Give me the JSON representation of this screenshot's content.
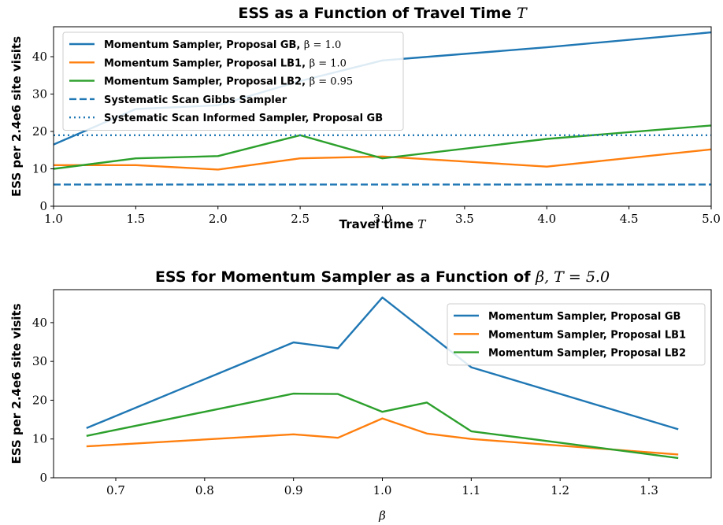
{
  "chart_data": [
    {
      "type": "line",
      "title": "ESS as a Function of Travel Time",
      "title_math": "T",
      "xlabel": "Travel time",
      "xlabel_math": "T",
      "ylabel": "ESS per 2.4e6 site visits",
      "xlim": [
        1.0,
        5.0
      ],
      "ylim": [
        0,
        48
      ],
      "xticks": [
        "1.0",
        "1.5",
        "2.0",
        "2.5",
        "3.0",
        "3.5",
        "4.0",
        "4.5",
        "5.0"
      ],
      "xtick_values": [
        1.0,
        1.5,
        2.0,
        2.5,
        3.0,
        3.5,
        4.0,
        4.5,
        5.0
      ],
      "yticks": [
        "0",
        "10",
        "20",
        "30",
        "40"
      ],
      "ytick_values": [
        0,
        10,
        20,
        30,
        40
      ],
      "legend_position": "upper-left",
      "series": [
        {
          "name": "Momentum Sampler, Proposal GB,",
          "name_math": "β = 1.0",
          "color": "#1f77b4",
          "style": "solid",
          "x": [
            1.0,
            1.5,
            2.0,
            2.5,
            3.0,
            4.0,
            5.0
          ],
          "y": [
            16.5,
            26.0,
            27.0,
            33.5,
            39.0,
            42.5,
            46.5
          ]
        },
        {
          "name": "Momentum Sampler, Proposal LB1,",
          "name_math": "β = 1.0",
          "color": "#ff7f0e",
          "style": "solid",
          "x": [
            1.0,
            1.5,
            2.0,
            2.5,
            3.0,
            4.0,
            5.0
          ],
          "y": [
            11.0,
            11.0,
            9.8,
            12.8,
            13.3,
            10.6,
            15.2
          ]
        },
        {
          "name": "Momentum Sampler, Proposal LB2,",
          "name_math": "β = 0.95",
          "color": "#2ca02c",
          "style": "solid",
          "x": [
            1.0,
            1.5,
            2.0,
            2.5,
            3.0,
            4.0,
            5.0
          ],
          "y": [
            10.0,
            12.8,
            13.4,
            19.0,
            12.8,
            18.0,
            21.6
          ]
        },
        {
          "name": "Systematic Scan Gibbs Sampler",
          "name_math": "",
          "color": "#1f77b4",
          "style": "dashed",
          "x": [
            1.0,
            5.0
          ],
          "y": [
            5.8,
            5.8
          ]
        },
        {
          "name": "Systematic Scan Informed Sampler, Proposal GB",
          "name_math": "",
          "color": "#1f77b4",
          "style": "dotted",
          "x": [
            1.0,
            5.0
          ],
          "y": [
            19.0,
            19.0
          ]
        }
      ]
    },
    {
      "type": "line",
      "title": "ESS for Momentum Sampler as a Function of",
      "title_math": "β, T = 5.0",
      "xlabel": "",
      "xlabel_math": "β",
      "ylabel": "ESS per 2.4e6 site visits",
      "xlim": [
        0.63,
        1.37
      ],
      "ylim": [
        0,
        48.5
      ],
      "xticks": [
        "0.7",
        "0.8",
        "0.9",
        "1.0",
        "1.1",
        "1.2",
        "1.3"
      ],
      "xtick_values": [
        0.7,
        0.8,
        0.9,
        1.0,
        1.1,
        1.2,
        1.3
      ],
      "yticks": [
        "0",
        "10",
        "20",
        "30",
        "40"
      ],
      "ytick_values": [
        0,
        10,
        20,
        30,
        40
      ],
      "legend_position": "upper-right",
      "series": [
        {
          "name": "Momentum Sampler, Proposal GB",
          "name_math": "",
          "color": "#1f77b4",
          "style": "solid",
          "x": [
            0.667,
            0.9,
            0.95,
            1.0,
            1.1,
            1.333
          ],
          "y": [
            12.8,
            34.9,
            33.4,
            46.5,
            28.5,
            12.5
          ]
        },
        {
          "name": "Momentum Sampler, Proposal LB1",
          "name_math": "",
          "color": "#ff7f0e",
          "style": "solid",
          "x": [
            0.667,
            0.9,
            0.95,
            1.0,
            1.05,
            1.1,
            1.333
          ],
          "y": [
            8.1,
            11.2,
            10.3,
            15.3,
            11.4,
            10.0,
            6.0
          ]
        },
        {
          "name": "Momentum Sampler, Proposal LB2",
          "name_math": "",
          "color": "#2ca02c",
          "style": "solid",
          "x": [
            0.667,
            0.9,
            0.95,
            1.0,
            1.05,
            1.1,
            1.333
          ],
          "y": [
            10.8,
            21.7,
            21.6,
            17.0,
            19.4,
            12.0,
            5.1
          ]
        }
      ]
    }
  ]
}
